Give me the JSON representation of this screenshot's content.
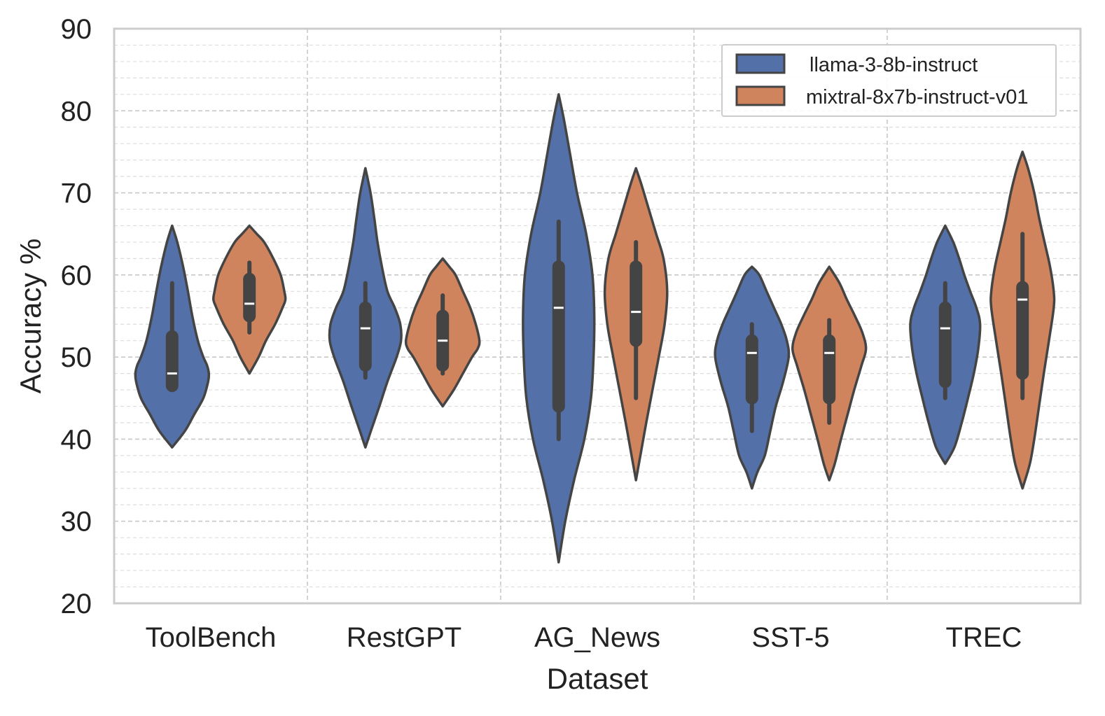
{
  "chart_data": {
    "type": "violin",
    "xlabel": "Dataset",
    "ylabel": "Accuracy %",
    "ylim": [
      20,
      90
    ],
    "yticks": [
      20,
      30,
      40,
      50,
      60,
      70,
      80,
      90
    ],
    "minor_grid_step": 2,
    "grid": true,
    "legend_position": "top-right",
    "categories": [
      "ToolBench",
      "RestGPT",
      "AG_News",
      "SST-5",
      "TREC"
    ],
    "series": [
      {
        "name": "llama-3-8b-instruct",
        "color": "#5470a8",
        "violins": [
          {
            "min": 39,
            "max": 66,
            "q1": 46.5,
            "median": 48,
            "q3": 52.5,
            "whisker_low": 46,
            "whisker_high": 59,
            "shape": [
              [
                39,
                0.0
              ],
              [
                41,
                0.35
              ],
              [
                43,
                0.6
              ],
              [
                45,
                0.85
              ],
              [
                47,
                0.98
              ],
              [
                48,
                1.0
              ],
              [
                49,
                0.95
              ],
              [
                50,
                0.85
              ],
              [
                52,
                0.7
              ],
              [
                55,
                0.55
              ],
              [
                58,
                0.43
              ],
              [
                61,
                0.3
              ],
              [
                64,
                0.14
              ],
              [
                66,
                0.0
              ]
            ]
          },
          {
            "min": 39,
            "max": 73,
            "q1": 49,
            "median": 53.5,
            "q3": 56,
            "whisker_low": 47.5,
            "whisker_high": 59,
            "shape": [
              [
                39,
                0.0
              ],
              [
                41,
                0.15
              ],
              [
                44,
                0.38
              ],
              [
                47,
                0.6
              ],
              [
                50,
                0.85
              ],
              [
                52,
                0.97
              ],
              [
                54,
                0.95
              ],
              [
                56,
                0.8
              ],
              [
                58,
                0.6
              ],
              [
                61,
                0.45
              ],
              [
                64,
                0.33
              ],
              [
                67,
                0.24
              ],
              [
                70,
                0.14
              ],
              [
                73,
                0.0
              ]
            ]
          },
          {
            "min": 25,
            "max": 82,
            "q1": 44,
            "median": 56,
            "q3": 61,
            "whisker_low": 40,
            "whisker_high": 66.5,
            "shape": [
              [
                25,
                0.0
              ],
              [
                30,
                0.18
              ],
              [
                35,
                0.42
              ],
              [
                40,
                0.7
              ],
              [
                45,
                0.88
              ],
              [
                50,
                0.95
              ],
              [
                55,
                0.97
              ],
              [
                60,
                0.92
              ],
              [
                65,
                0.75
              ],
              [
                70,
                0.5
              ],
              [
                75,
                0.3
              ],
              [
                79,
                0.14
              ],
              [
                82,
                0.0
              ]
            ]
          },
          {
            "min": 34,
            "max": 61,
            "q1": 45,
            "median": 50.5,
            "q3": 52,
            "whisker_low": 41,
            "whisker_high": 54,
            "shape": [
              [
                34,
                0.0
              ],
              [
                36,
                0.15
              ],
              [
                38,
                0.35
              ],
              [
                41,
                0.5
              ],
              [
                44,
                0.65
              ],
              [
                47,
                0.85
              ],
              [
                50,
                1.0
              ],
              [
                52,
                0.95
              ],
              [
                54,
                0.8
              ],
              [
                56,
                0.6
              ],
              [
                58,
                0.4
              ],
              [
                60,
                0.2
              ],
              [
                61,
                0.0
              ]
            ]
          },
          {
            "min": 37,
            "max": 66,
            "q1": 47,
            "median": 53.5,
            "q3": 56,
            "whisker_low": 45,
            "whisker_high": 59,
            "shape": [
              [
                37,
                0.0
              ],
              [
                39,
                0.25
              ],
              [
                42,
                0.45
              ],
              [
                45,
                0.62
              ],
              [
                48,
                0.78
              ],
              [
                51,
                0.9
              ],
              [
                54,
                0.95
              ],
              [
                56,
                0.85
              ],
              [
                58,
                0.68
              ],
              [
                60,
                0.52
              ],
              [
                62,
                0.38
              ],
              [
                64,
                0.22
              ],
              [
                66,
                0.0
              ]
            ]
          }
        ]
      },
      {
        "name": "mixtral-8x7b-instruct-v01",
        "color": "#d0845e",
        "violins": [
          {
            "min": 48,
            "max": 66,
            "q1": 55,
            "median": 56.5,
            "q3": 59.5,
            "whisker_low": 53,
            "whisker_high": 61.5,
            "shape": [
              [
                48,
                0.0
              ],
              [
                50,
                0.25
              ],
              [
                52,
                0.45
              ],
              [
                54,
                0.7
              ],
              [
                56,
                0.9
              ],
              [
                57,
                0.98
              ],
              [
                58,
                0.95
              ],
              [
                60,
                0.85
              ],
              [
                62,
                0.65
              ],
              [
                64,
                0.4
              ],
              [
                65,
                0.2
              ],
              [
                66,
                0.0
              ]
            ]
          },
          {
            "min": 44,
            "max": 62,
            "q1": 49,
            "median": 52,
            "q3": 55,
            "whisker_low": 48,
            "whisker_high": 57.5,
            "shape": [
              [
                44,
                0.0
              ],
              [
                46,
                0.3
              ],
              [
                48,
                0.55
              ],
              [
                50,
                0.8
              ],
              [
                51,
                0.95
              ],
              [
                52,
                1.0
              ],
              [
                54,
                0.9
              ],
              [
                56,
                0.75
              ],
              [
                58,
                0.55
              ],
              [
                60,
                0.35
              ],
              [
                61,
                0.18
              ],
              [
                62,
                0.0
              ]
            ]
          },
          {
            "min": 35,
            "max": 73,
            "q1": 52,
            "median": 55.5,
            "q3": 61,
            "whisker_low": 45,
            "whisker_high": 64,
            "shape": [
              [
                35,
                0.0
              ],
              [
                38,
                0.12
              ],
              [
                42,
                0.28
              ],
              [
                46,
                0.45
              ],
              [
                50,
                0.62
              ],
              [
                54,
                0.78
              ],
              [
                58,
                0.85
              ],
              [
                62,
                0.75
              ],
              [
                65,
                0.55
              ],
              [
                68,
                0.35
              ],
              [
                71,
                0.15
              ],
              [
                73,
                0.0
              ]
            ]
          },
          {
            "min": 35,
            "max": 61,
            "q1": 45,
            "median": 50.5,
            "q3": 52,
            "whisker_low": 42,
            "whisker_high": 54.5,
            "shape": [
              [
                35,
                0.0
              ],
              [
                37,
                0.15
              ],
              [
                40,
                0.32
              ],
              [
                43,
                0.5
              ],
              [
                46,
                0.68
              ],
              [
                49,
                0.88
              ],
              [
                51,
                1.0
              ],
              [
                53,
                0.9
              ],
              [
                55,
                0.7
              ],
              [
                57,
                0.48
              ],
              [
                59,
                0.28
              ],
              [
                61,
                0.0
              ]
            ]
          },
          {
            "min": 34,
            "max": 75,
            "q1": 48,
            "median": 57,
            "q3": 58.5,
            "whisker_low": 45,
            "whisker_high": 65,
            "shape": [
              [
                34,
                0.0
              ],
              [
                37,
                0.2
              ],
              [
                40,
                0.32
              ],
              [
                44,
                0.45
              ],
              [
                48,
                0.58
              ],
              [
                52,
                0.72
              ],
              [
                56,
                0.85
              ],
              [
                58,
                0.85
              ],
              [
                61,
                0.75
              ],
              [
                64,
                0.6
              ],
              [
                67,
                0.45
              ],
              [
                70,
                0.32
              ],
              [
                73,
                0.15
              ],
              [
                75,
                0.0
              ]
            ]
          }
        ]
      }
    ]
  }
}
